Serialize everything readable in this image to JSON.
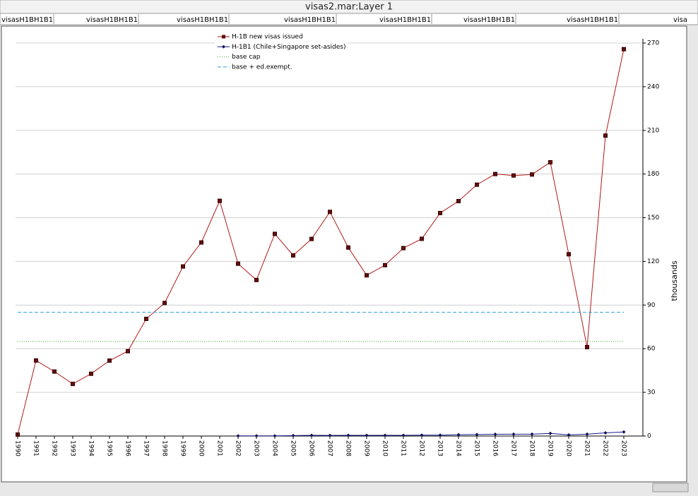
{
  "window": {
    "title": "visas2.mar:Layer 1"
  },
  "tabs": [
    "visasH1BH1B1",
    "visasH1BH1B1",
    "visasH1BH1B1",
    "visasH1BH1B1",
    "visasH1BH1B1",
    "visasH1BH1B1",
    "visasH1BH1B1",
    "visa"
  ],
  "chart_data": {
    "type": "line",
    "y_label": "thousands",
    "categories": [
      "1990",
      "1991",
      "1992",
      "1993",
      "1994",
      "1995",
      "1996",
      "1997",
      "1998",
      "1999",
      "2000",
      "2001",
      "2002",
      "2003",
      "2004",
      "2005",
      "2006",
      "2007",
      "2008",
      "2009",
      "2010",
      "2011",
      "2012",
      "2013",
      "2014",
      "2015",
      "2016",
      "2017",
      "2018",
      "2019",
      "2020",
      "2021",
      "2022",
      "2023"
    ],
    "series": [
      {
        "name": "H-1B new visas issued",
        "color": "#b01818",
        "marker": "square",
        "marker_color": "#6a0a0a",
        "values": [
          1,
          51.9,
          44.3,
          35.8,
          42.8,
          51.8,
          58.3,
          80.5,
          91.4,
          116.5,
          133,
          161.6,
          118.4,
          107.2,
          138.9,
          124.1,
          135.4,
          154,
          129.5,
          110.4,
          117.4,
          129.1,
          135.5,
          153.2,
          161.4,
          172.7,
          180,
          179,
          179.7,
          188.1,
          124.9,
          61.1,
          206.4,
          265.8
        ]
      },
      {
        "name": "H-1B1 (Chile+Singapore set-asides)",
        "color": "#1a1a8c",
        "marker": "diamond",
        "marker_color": "#10105a",
        "values": [
          null,
          null,
          null,
          null,
          null,
          null,
          null,
          null,
          null,
          null,
          null,
          null,
          0.1,
          0.1,
          0.1,
          0.3,
          0.5,
          0.4,
          0.5,
          0.5,
          0.5,
          0.5,
          0.6,
          0.6,
          0.9,
          1.0,
          1.2,
          1.3,
          1.3,
          1.8,
          0.8,
          1.3,
          2.2,
          2.8
        ]
      },
      {
        "name": "base cap",
        "color": "#33aa33",
        "dash": "1,2",
        "values": [
          65,
          65,
          65,
          65,
          65,
          65,
          65,
          65,
          65,
          65,
          65,
          65,
          65,
          65,
          65,
          65,
          65,
          65,
          65,
          65,
          65,
          65,
          65,
          65,
          65,
          65,
          65,
          65,
          65,
          65,
          65,
          65,
          65,
          65
        ]
      },
      {
        "name": "base + ed.exempt.",
        "color": "#2f9fd0",
        "dash": "5,3",
        "values": [
          85,
          85,
          85,
          85,
          85,
          85,
          85,
          85,
          85,
          85,
          85,
          85,
          85,
          85,
          85,
          85,
          85,
          85,
          85,
          85,
          85,
          85,
          85,
          85,
          85,
          85,
          85,
          85,
          85,
          85,
          85,
          85,
          85,
          85
        ]
      }
    ],
    "ylim": [
      0,
      270
    ],
    "yticks": [
      0,
      30,
      60,
      90,
      120,
      150,
      180,
      210,
      240,
      270
    ],
    "grid": true
  }
}
